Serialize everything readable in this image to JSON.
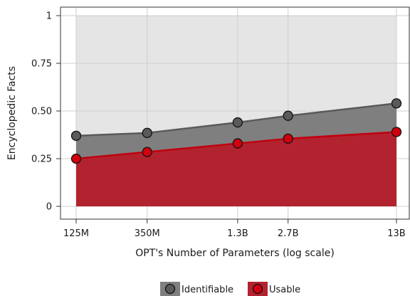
{
  "chart_data": {
    "type": "area",
    "x": [
      125,
      350,
      1300,
      2700,
      13000
    ],
    "x_unit": "M parameters",
    "x_scale": "log",
    "categories": [
      "125M",
      "350M",
      "1.3B",
      "2.7B",
      "13B"
    ],
    "series": [
      {
        "name": "Identifiable",
        "values": [
          0.37,
          0.385,
          0.44,
          0.475,
          0.54
        ],
        "color": "#5a5a5a",
        "fill": "#7f7f7f"
      },
      {
        "name": "Usable",
        "values": [
          0.25,
          0.285,
          0.33,
          0.355,
          0.39
        ],
        "color": "#c0000f",
        "fill": "#b2232f"
      }
    ],
    "ylim": [
      0,
      1
    ],
    "yticks": [
      0,
      0.25,
      0.5,
      0.75,
      1
    ],
    "ytick_labels": [
      "0",
      "0.25",
      "0.50",
      "0.75",
      "1"
    ],
    "title": "",
    "xlabel": "OPT's Number of Parameters (log scale)",
    "ylabel": "Encyclopedic Facts",
    "background_fill": "#e5e5e5",
    "grid": true,
    "legend_position": "bottom-center"
  }
}
